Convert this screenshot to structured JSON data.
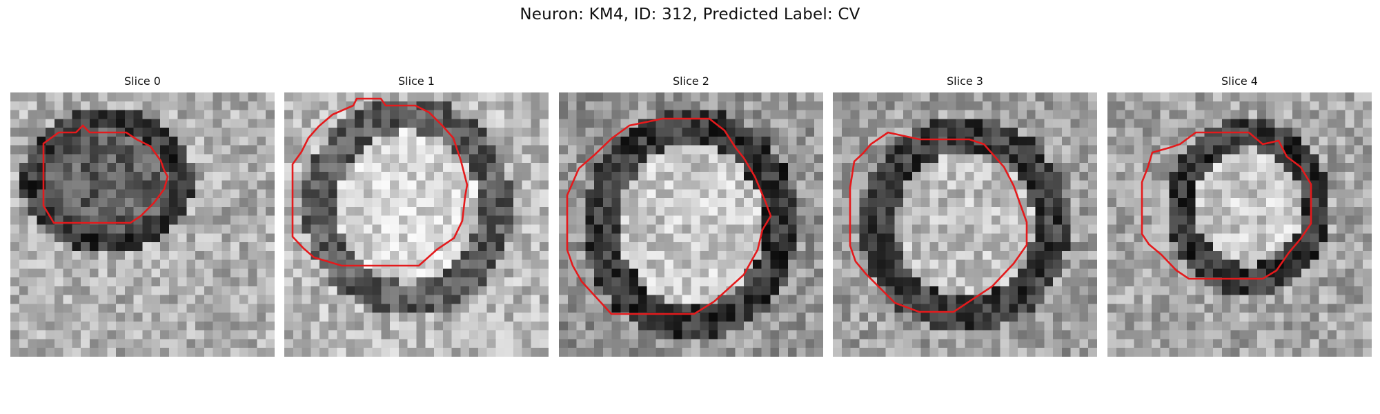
{
  "figure": {
    "title": "Neuron: KM4, ID: 312, Predicted Label: CV"
  },
  "colors": {
    "background": "#ffffff",
    "contour": "#e41a1c",
    "colormap": "gray"
  },
  "slices": [
    {
      "title": "Slice 0"
    },
    {
      "title": "Slice 1"
    },
    {
      "title": "Slice 2"
    },
    {
      "title": "Slice 3"
    },
    {
      "title": "Slice 4"
    }
  ]
}
